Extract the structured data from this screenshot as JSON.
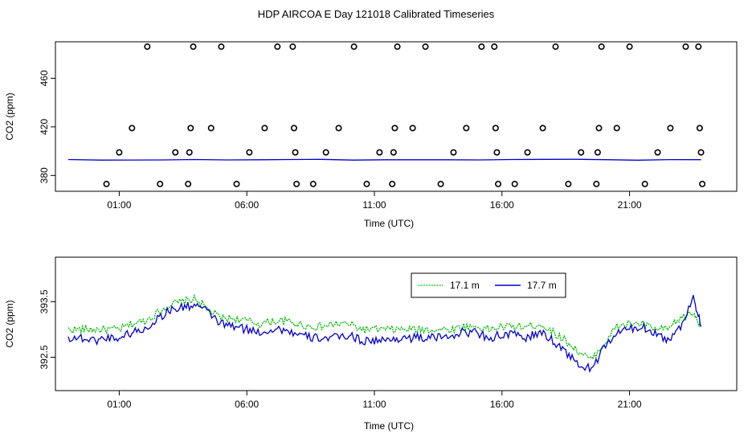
{
  "title": "HDP AIRCOA E  Day 121018  Calibrated Timeseries",
  "chart_data": [
    {
      "type": "scatter",
      "xlabel": "Time (UTC)",
      "ylabel": "CO2 (ppm)",
      "x_unit": "hours UTC",
      "xlim": [
        -1.5,
        25.2
      ],
      "ylim": [
        367,
        490
      ],
      "xticks": [
        1,
        6,
        11,
        16,
        21
      ],
      "xtick_labels": [
        "01:00",
        "06:00",
        "11:00",
        "16:00",
        "21:00"
      ],
      "yticks": [
        380,
        420,
        460
      ],
      "ytick_labels": [
        "380",
        "420",
        "460"
      ],
      "grid": false,
      "series": [
        {
          "kind": "points",
          "color": "#000000",
          "points": [
            [
              0.5,
              373
            ],
            [
              1.0,
              399
            ],
            [
              1.5,
              419
            ],
            [
              2.1,
              486
            ],
            [
              2.6,
              373
            ],
            [
              3.2,
              399
            ],
            [
              3.7,
              373
            ],
            [
              3.75,
              399
            ],
            [
              3.8,
              419
            ],
            [
              3.9,
              486
            ],
            [
              4.6,
              419
            ],
            [
              5.0,
              486
            ],
            [
              5.6,
              373
            ],
            [
              6.1,
              399
            ],
            [
              6.7,
              419
            ],
            [
              7.2,
              486
            ],
            [
              7.8,
              486
            ],
            [
              7.85,
              419
            ],
            [
              7.9,
              399
            ],
            [
              7.95,
              373
            ],
            [
              8.6,
              373
            ],
            [
              9.1,
              399
            ],
            [
              9.6,
              419
            ],
            [
              10.2,
              486
            ],
            [
              10.7,
              373
            ],
            [
              11.2,
              399
            ],
            [
              11.7,
              373
            ],
            [
              11.75,
              399
            ],
            [
              11.8,
              419
            ],
            [
              11.9,
              486
            ],
            [
              12.5,
              419
            ],
            [
              13.0,
              486
            ],
            [
              13.6,
              373
            ],
            [
              14.1,
              399
            ],
            [
              14.6,
              419
            ],
            [
              15.2,
              486
            ],
            [
              15.7,
              486
            ],
            [
              15.75,
              419
            ],
            [
              15.8,
              399
            ],
            [
              15.85,
              373
            ],
            [
              16.5,
              373
            ],
            [
              17.0,
              399
            ],
            [
              17.6,
              419
            ],
            [
              18.1,
              486
            ],
            [
              18.6,
              373
            ],
            [
              19.1,
              399
            ],
            [
              19.7,
              373
            ],
            [
              19.75,
              399
            ],
            [
              19.8,
              419
            ],
            [
              19.9,
              486
            ],
            [
              20.5,
              419
            ],
            [
              21.0,
              486
            ],
            [
              21.6,
              373
            ],
            [
              22.1,
              399
            ],
            [
              22.6,
              419
            ],
            [
              23.2,
              486
            ],
            [
              23.7,
              486
            ],
            [
              23.75,
              419
            ],
            [
              23.8,
              399
            ],
            [
              23.85,
              373
            ]
          ]
        },
        {
          "kind": "line",
          "color": "#0000cc",
          "x": [
            -1.0,
            23.8
          ],
          "y": [
            393,
            393
          ]
        }
      ]
    },
    {
      "type": "line",
      "xlabel": "Time (UTC)",
      "ylabel": "CO2 (ppm)",
      "x_unit": "hours UTC",
      "xlim": [
        -1.5,
        25.2
      ],
      "ylim": [
        391.9,
        394.3
      ],
      "xticks": [
        1,
        6,
        11,
        16,
        21
      ],
      "xtick_labels": [
        "01:00",
        "06:00",
        "11:00",
        "16:00",
        "21:00"
      ],
      "yticks": [
        392.5,
        393.5
      ],
      "ytick_labels": [
        "392.5",
        "393.5"
      ],
      "grid": false,
      "legend": {
        "position": "top-right-inside"
      },
      "series": [
        {
          "name": "17.1 m",
          "color": "#00bb00",
          "x": [
            -1,
            -0.5,
            0,
            0.5,
            1,
            1.5,
            2,
            2.5,
            3,
            3.5,
            4,
            4.5,
            5,
            5.5,
            6,
            6.5,
            7,
            7.5,
            8,
            8.5,
            9,
            9.5,
            10,
            10.5,
            11,
            11.5,
            12,
            12.5,
            13,
            13.5,
            14,
            14.5,
            15,
            15.5,
            16,
            16.5,
            17,
            17.5,
            18,
            18.5,
            19,
            19.5,
            20,
            20.5,
            21,
            21.5,
            22,
            22.5,
            23,
            23.5,
            23.8
          ],
          "y": [
            393.0,
            393.0,
            393.0,
            393.0,
            393.0,
            393.1,
            393.15,
            393.3,
            393.45,
            393.5,
            393.55,
            393.35,
            393.2,
            393.2,
            393.15,
            393.1,
            393.15,
            393.15,
            393.1,
            393.05,
            393.05,
            393.1,
            393.1,
            393.0,
            393.0,
            393.0,
            393.0,
            393.0,
            393.0,
            393.0,
            393.0,
            393.05,
            393.05,
            393.0,
            393.05,
            393.05,
            393.05,
            393.1,
            392.95,
            392.8,
            392.6,
            392.45,
            392.75,
            393.05,
            393.1,
            393.1,
            393.0,
            393.0,
            393.2,
            393.3,
            393.05
          ]
        },
        {
          "name": "17.7 m",
          "color": "#0000cc",
          "x": [
            -1,
            -0.5,
            0,
            0.5,
            1,
            1.5,
            2,
            2.5,
            3,
            3.5,
            4,
            4.5,
            5,
            5.5,
            6,
            6.5,
            7,
            7.5,
            8,
            8.5,
            9,
            9.5,
            10,
            10.5,
            11,
            11.5,
            12,
            12.5,
            13,
            13.5,
            14,
            14.5,
            15,
            15.5,
            16,
            16.5,
            17,
            17.5,
            18,
            18.5,
            19,
            19.5,
            20,
            20.5,
            21,
            21.5,
            22,
            22.5,
            23,
            23.5,
            23.8
          ],
          "y": [
            392.85,
            392.85,
            392.8,
            392.85,
            392.85,
            392.95,
            393.0,
            393.2,
            393.35,
            393.4,
            393.45,
            393.3,
            393.1,
            393.05,
            393.0,
            392.95,
            393.0,
            393.0,
            392.9,
            392.85,
            392.85,
            392.85,
            392.9,
            392.8,
            392.8,
            392.8,
            392.85,
            392.85,
            392.85,
            392.85,
            392.9,
            392.95,
            392.95,
            392.85,
            392.9,
            392.9,
            392.85,
            392.95,
            392.8,
            392.6,
            392.35,
            392.3,
            392.65,
            392.95,
            393.0,
            393.05,
            392.95,
            392.8,
            393.05,
            393.6,
            393.05
          ]
        }
      ]
    }
  ]
}
